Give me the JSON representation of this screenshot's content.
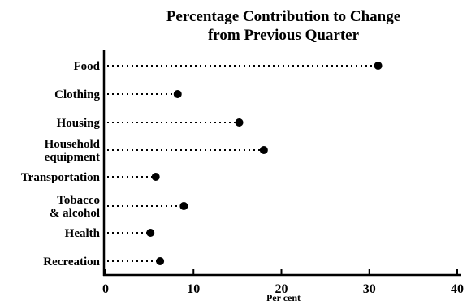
{
  "chart_data": {
    "type": "dot",
    "title_lines": [
      "Percentage Contribution to Change",
      "from Previous Quarter"
    ],
    "categories": [
      [
        "Food"
      ],
      [
        "Clothing"
      ],
      [
        "Housing"
      ],
      [
        "Household",
        "equipment"
      ],
      [
        "Transportation"
      ],
      [
        "Tobacco",
        "& alcohol"
      ],
      [
        "Health"
      ],
      [
        "Recreation"
      ]
    ],
    "values": [
      31,
      8.2,
      15.2,
      18,
      5.7,
      8.9,
      5.1,
      6.2
    ],
    "xlabel": "Per cent",
    "xlim": [
      0,
      40
    ],
    "xticks": [
      0,
      10,
      20,
      30,
      40
    ],
    "grid": false,
    "legend": "none",
    "colors": {
      "marker": "#000000",
      "line": "#000000"
    }
  }
}
